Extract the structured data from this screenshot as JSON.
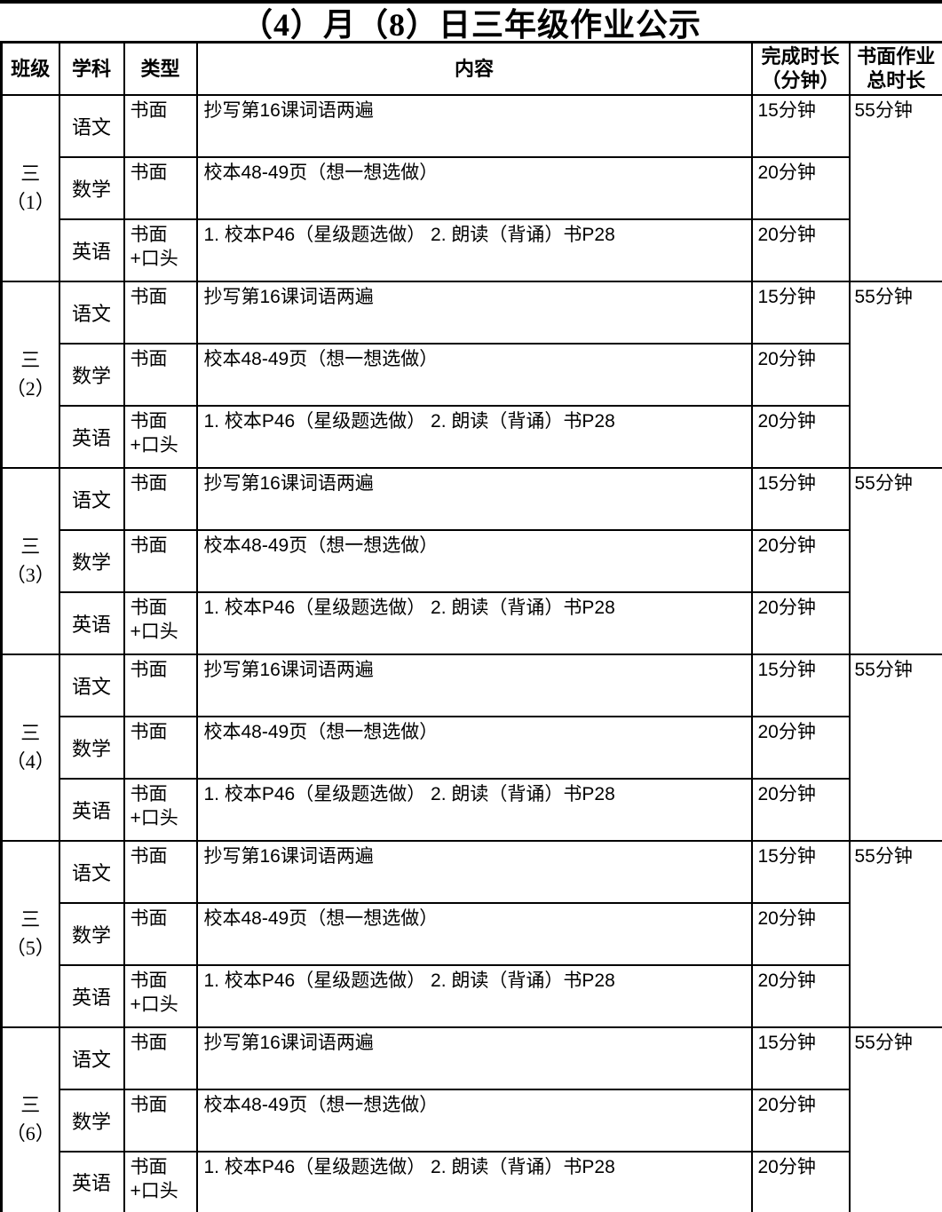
{
  "title": "（4）月（8）日三年级作业公示",
  "headers": {
    "class": "班级",
    "subject": "学科",
    "type": "类型",
    "content": "内容",
    "duration": "完成时长\n（分钟）",
    "total": "书面作业\n总时长"
  },
  "classes": [
    {
      "name": "三\n（1）",
      "total": "55分钟",
      "rows": [
        {
          "subject": "语文",
          "type": "书面",
          "content": "抄写第16课词语两遍",
          "duration": "15分钟"
        },
        {
          "subject": "数学",
          "type": "书面",
          "content": "校本48-49页（想一想选做）",
          "duration": "20分钟"
        },
        {
          "subject": "英语",
          "type": "书面+口头",
          "content": "1. 校本P46（星级题选做） 2. 朗读（背诵）书P28",
          "duration": "20分钟"
        }
      ]
    },
    {
      "name": "三\n（2）",
      "total": "55分钟",
      "rows": [
        {
          "subject": "语文",
          "type": "书面",
          "content": "抄写第16课词语两遍",
          "duration": "15分钟"
        },
        {
          "subject": "数学",
          "type": "书面",
          "content": "校本48-49页（想一想选做）",
          "duration": "20分钟"
        },
        {
          "subject": "英语",
          "type": "书面+口头",
          "content": "1. 校本P46（星级题选做） 2. 朗读（背诵）书P28",
          "duration": "20分钟"
        }
      ]
    },
    {
      "name": "三\n（3）",
      "total": "55分钟",
      "rows": [
        {
          "subject": "语文",
          "type": "书面",
          "content": "抄写第16课词语两遍",
          "duration": "15分钟"
        },
        {
          "subject": "数学",
          "type": "书面",
          "content": "校本48-49页（想一想选做）",
          "duration": "20分钟"
        },
        {
          "subject": "英语",
          "type": "书面+口头",
          "content": "1. 校本P46（星级题选做） 2. 朗读（背诵）书P28",
          "duration": "20分钟"
        }
      ]
    },
    {
      "name": "三\n（4）",
      "total": "55分钟",
      "rows": [
        {
          "subject": "语文",
          "type": "书面",
          "content": "抄写第16课词语两遍",
          "duration": "15分钟"
        },
        {
          "subject": "数学",
          "type": "书面",
          "content": "校本48-49页（想一想选做）",
          "duration": "20分钟"
        },
        {
          "subject": "英语",
          "type": "书面+口头",
          "content": "1. 校本P46（星级题选做） 2. 朗读（背诵）书P28",
          "duration": "20分钟"
        }
      ]
    },
    {
      "name": "三\n（5）",
      "total": "55分钟",
      "rows": [
        {
          "subject": "语文",
          "type": "书面",
          "content": "抄写第16课词语两遍",
          "duration": "15分钟"
        },
        {
          "subject": "数学",
          "type": "书面",
          "content": "校本48-49页（想一想选做）",
          "duration": "20分钟"
        },
        {
          "subject": "英语",
          "type": "书面+口头",
          "content": "1. 校本P46（星级题选做） 2. 朗读（背诵）书P28",
          "duration": "20分钟"
        }
      ]
    },
    {
      "name": "三\n（6）",
      "total": "55分钟",
      "rows": [
        {
          "subject": "语文",
          "type": "书面",
          "content": "抄写第16课词语两遍",
          "duration": "15分钟"
        },
        {
          "subject": "数学",
          "type": "书面",
          "content": "校本48-49页（想一想选做）",
          "duration": "20分钟"
        },
        {
          "subject": "英语",
          "type": "书面+口头",
          "content": "1. 校本P46（星级题选做） 2. 朗读（背诵）书P28",
          "duration": "20分钟"
        }
      ]
    }
  ]
}
